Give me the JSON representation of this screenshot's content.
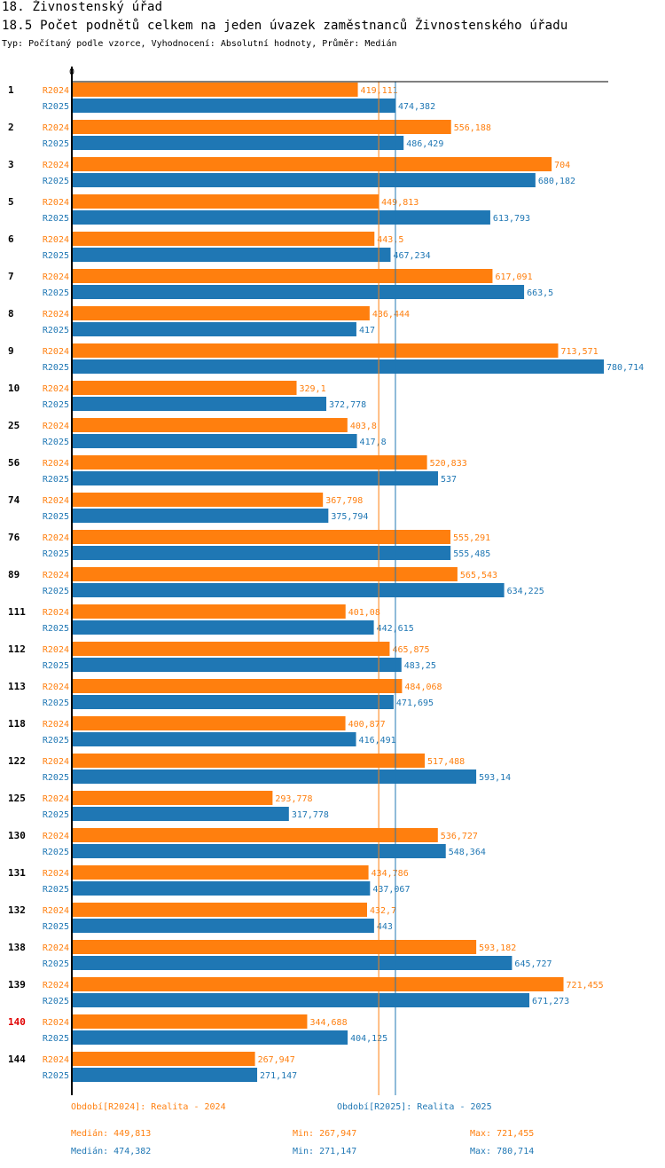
{
  "header": {
    "section_title": "18. Živnostenský úřad",
    "chart_title": "18.5 Počet podnětů celkem na jeden úvazek zaměstnanců Živnostenského úřadu",
    "subtitle": "Typ: Počítaný podle vzorce, Vyhodnocení: Absolutní hodnoty, Průměr: Medián"
  },
  "colors": {
    "R2024": "#ff7f0e",
    "R2025": "#1f77b4",
    "highlight": "#e00000",
    "axis": "#000000"
  },
  "chart_data": {
    "type": "bar",
    "orientation": "horizontal",
    "title": "18.5 Počet podnětů celkem na jeden úvazek zaměstnanců Živnostenského úřadu",
    "xlabel": "",
    "ylabel": "",
    "x_tick_labels": [
      "0"
    ],
    "xlim": [
      0,
      780.714
    ],
    "grid": false,
    "legend": "bottom",
    "highlighted_category": "140",
    "categories": [
      "1",
      "2",
      "3",
      "5",
      "6",
      "7",
      "8",
      "9",
      "10",
      "25",
      "56",
      "74",
      "76",
      "89",
      "111",
      "112",
      "113",
      "118",
      "122",
      "125",
      "130",
      "131",
      "132",
      "138",
      "139",
      "140",
      "144"
    ],
    "series": [
      {
        "name": "R2024",
        "legend_label": "Období[R2024]: Realita - 2024",
        "values": [
          419.111,
          556.188,
          704,
          449.813,
          443.5,
          617.091,
          436.444,
          713.571,
          329.1,
          403.8,
          520.833,
          367.798,
          555.291,
          565.543,
          401.08,
          465.875,
          484.068,
          400.877,
          517.488,
          293.778,
          536.727,
          434.786,
          432.7,
          593.182,
          721.455,
          344.688,
          267.947
        ],
        "labels": [
          "419,111",
          "556,188",
          "704",
          "449,813",
          "443,5",
          "617,091",
          "436,444",
          "713,571",
          "329,1",
          "403,8",
          "520,833",
          "367,798",
          "555,291",
          "565,543",
          "401,08",
          "465,875",
          "484,068",
          "400,877",
          "517,488",
          "293,778",
          "536,727",
          "434,786",
          "432,7",
          "593,182",
          "721,455",
          "344,688",
          "267,947"
        ],
        "median": 449.813,
        "median_label": "Medián: 449,813",
        "min_label": "Min: 267,947",
        "max_label": "Max: 721,455"
      },
      {
        "name": "R2025",
        "legend_label": "Období[R2025]: Realita - 2025",
        "values": [
          474.382,
          486.429,
          680.182,
          613.793,
          467.234,
          663.5,
          417,
          780.714,
          372.778,
          417.8,
          537,
          375.794,
          555.485,
          634.225,
          442.615,
          483.25,
          471.695,
          416.491,
          593.14,
          317.778,
          548.364,
          437.067,
          443,
          645.727,
          671.273,
          404.125,
          271.147
        ],
        "labels": [
          "474,382",
          "486,429",
          "680,182",
          "613,793",
          "467,234",
          "663,5",
          "417",
          "780,714",
          "372,778",
          "417,8",
          "537",
          "375,794",
          "555,485",
          "634,225",
          "442,615",
          "483,25",
          "471,695",
          "416,491",
          "593,14",
          "317,778",
          "548,364",
          "437,067",
          "443",
          "645,727",
          "671,273",
          "404,125",
          "271,147"
        ],
        "median": 474.382,
        "median_label": "Medián: 474,382",
        "min_label": "Min: 271,147",
        "max_label": "Max: 780,714"
      }
    ]
  }
}
